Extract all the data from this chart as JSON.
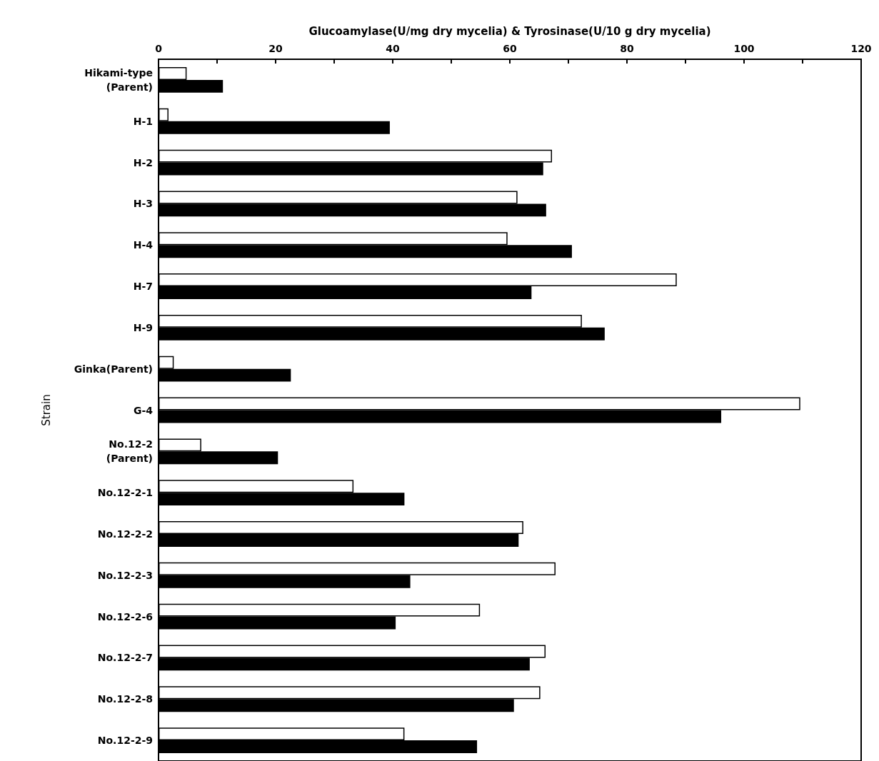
{
  "chart_data": {
    "type": "bar",
    "orientation": "horizontal",
    "xlabel": "Glucoamylase(U/mg dry mycelia) & Tyrosinase(U/10 g dry mycelia)",
    "ylabel": "Strain",
    "categories": [
      "Hikami-type\n(Parent)",
      "H-1",
      "H-2",
      "H-3",
      "H-4",
      "H-7",
      "H-9",
      "Ginka(Parent)",
      "G-4",
      "No.12-2\n(Parent)",
      "No.12-2-1",
      "No.12-2-2",
      "No.12-2-3",
      "No.12-2-6",
      "No.12-2-7",
      "No.12-2-8",
      "No.12-2-9"
    ],
    "series": [
      {
        "color": "#ffffff",
        "values": [
          4.8,
          1.7,
          67.2,
          61.3,
          59.6,
          88.5,
          72.3,
          2.6,
          109.6,
          7.3,
          33.3,
          62.3,
          67.8,
          54.9,
          66.1,
          65.2,
          42.0
        ]
      },
      {
        "color": "#000000",
        "values": [
          11.0,
          39.5,
          65.7,
          66.2,
          70.6,
          63.7,
          76.2,
          22.6,
          96.1,
          20.4,
          42.0,
          61.5,
          43.0,
          40.5,
          63.4,
          60.7,
          54.4
        ]
      }
    ],
    "xlim": [
      0,
      120
    ],
    "xticks": [
      0,
      {
        "value": 10,
        "label": null
      },
      20,
      {
        "value": 30,
        "label": null
      },
      40,
      {
        "value": 50,
        "label": null
      },
      60,
      {
        "value": 70,
        "label": null
      },
      80,
      {
        "value": 90,
        "label": null
      },
      100,
      {
        "value": 110,
        "label": null
      },
      120
    ],
    "grid": false
  }
}
